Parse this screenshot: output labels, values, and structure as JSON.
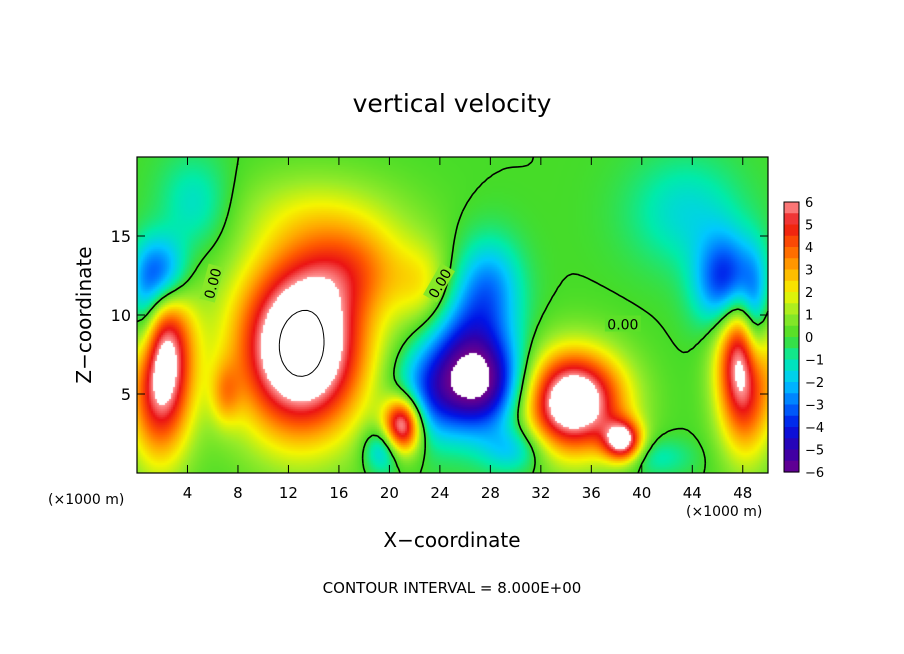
{
  "chart_data": {
    "type": "heatmap",
    "title": "vertical velocity",
    "xlabel": "X−coordinate",
    "ylabel": "Z−coordinate",
    "x_unit_label": "(×1000 m)",
    "y_unit_label": "(×1000 m)",
    "xlim": [
      0,
      50
    ],
    "ylim": [
      0,
      20
    ],
    "x_ticks": [
      4,
      8,
      12,
      16,
      20,
      24,
      28,
      32,
      36,
      40,
      44,
      48
    ],
    "y_ticks": [
      5,
      10,
      15
    ],
    "colorbar": {
      "range": [
        -6,
        6
      ],
      "ticks": [
        "6",
        "5",
        "4",
        "3",
        "2",
        "1",
        "0",
        "−1",
        "−2",
        "−3",
        "−4",
        "−5",
        "−6"
      ]
    },
    "contour_interval_text": "CONTOUR INTERVAL = 8.000E+00",
    "contour_labels": [
      {
        "text": "0.00",
        "x": 6.0,
        "z": 12.0,
        "angle": -75
      },
      {
        "text": "0.00",
        "x": 24.0,
        "z": 12.0,
        "angle": -60
      },
      {
        "text": "0.00",
        "x": 38.5,
        "z": 9.4,
        "angle": 0
      }
    ],
    "features": [
      {
        "x": 13.0,
        "z": 8.0,
        "rx": 5.0,
        "rz": 5.5,
        "w": 9
      },
      {
        "x": 17.5,
        "z": 13.0,
        "rx": 4.5,
        "rz": 3.0,
        "w": 2.5
      },
      {
        "x": 23.0,
        "z": 11.5,
        "rx": 2.5,
        "rz": 3.0,
        "w": 2
      },
      {
        "x": 14.5,
        "z": 16.5,
        "rx": 7.0,
        "rz": 2.8,
        "w": 1.2
      },
      {
        "x": 34.5,
        "z": 4.5,
        "rx": 4.0,
        "rz": 3.2,
        "w": 8
      },
      {
        "x": 38.5,
        "z": 2.0,
        "rx": 1.5,
        "rz": 1.3,
        "w": 6
      },
      {
        "x": 1.8,
        "z": 7.0,
        "rx": 2.5,
        "rz": 5.5,
        "w": 8
      },
      {
        "x": 48.3,
        "z": 7.0,
        "rx": 2.2,
        "rz": 5.0,
        "w": 8
      },
      {
        "x": 21.0,
        "z": 3.0,
        "rx": 1.5,
        "rz": 1.8,
        "w": 7
      },
      {
        "x": 2.0,
        "z": 12.5,
        "rx": 2.0,
        "rz": 2.5,
        "w": -4.5
      },
      {
        "x": 0.6,
        "z": 9.5,
        "rx": 1.5,
        "rz": 4.0,
        "w": -4
      },
      {
        "x": 47.0,
        "z": 12.0,
        "rx": 2.5,
        "rz": 3.0,
        "w": -5
      },
      {
        "x": 49.0,
        "z": 9.0,
        "rx": 1.2,
        "rz": 4.0,
        "w": -4.5
      },
      {
        "x": 27.5,
        "z": 5.5,
        "rx": 3.5,
        "rz": 3.0,
        "w": -5
      },
      {
        "x": 26.0,
        "z": 8.5,
        "rx": 3.5,
        "rz": 4.0,
        "w": -3
      },
      {
        "x": 23.0,
        "z": 5.0,
        "rx": 3.0,
        "rz": 3.0,
        "w": -2.5
      },
      {
        "x": 28.0,
        "z": 12.0,
        "rx": 2.5,
        "rz": 3.0,
        "w": -2
      },
      {
        "x": 30.0,
        "z": 1.5,
        "rx": 2.5,
        "rz": 1.5,
        "w": -2
      },
      {
        "x": 43.5,
        "z": 16.5,
        "rx": 4.5,
        "rz": 3.5,
        "w": -1.5
      },
      {
        "x": 4.5,
        "z": 17.0,
        "rx": 3.0,
        "rz": 3.0,
        "w": -1.5
      },
      {
        "x": 41.0,
        "z": 1.0,
        "rx": 3.0,
        "rz": 1.2,
        "w": -1.2
      },
      {
        "x": 19.5,
        "z": 1.5,
        "rx": 1.5,
        "rz": 1.5,
        "w": -2.5
      },
      {
        "x": 7.0,
        "z": 5.0,
        "rx": 1.2,
        "rz": 2.0,
        "w": 2
      }
    ]
  }
}
